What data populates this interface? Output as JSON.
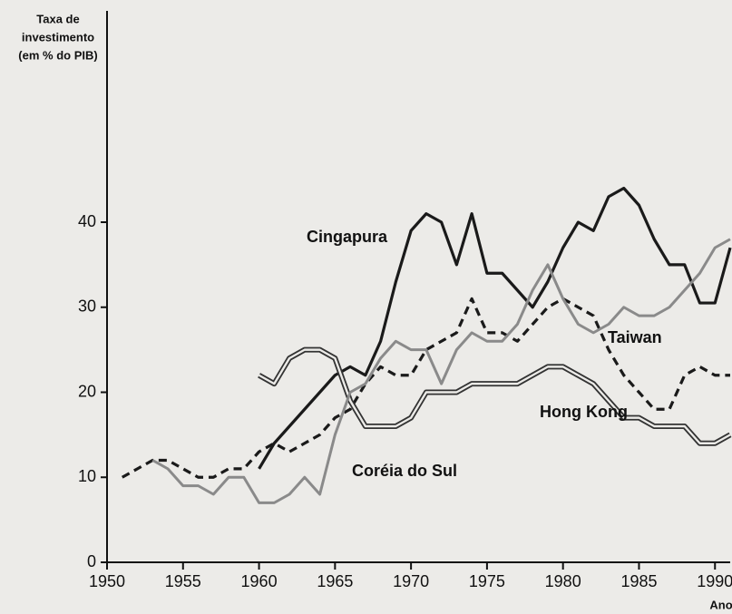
{
  "chart_data": {
    "type": "line",
    "y_label": [
      "Taxa de",
      "investimento",
      "(em % do PIB)"
    ],
    "x_label": "Ano",
    "x": [
      1950,
      1951,
      1952,
      1953,
      1954,
      1955,
      1956,
      1957,
      1958,
      1959,
      1960,
      1961,
      1962,
      1963,
      1964,
      1965,
      1966,
      1967,
      1968,
      1969,
      1970,
      1971,
      1972,
      1973,
      1974,
      1975,
      1976,
      1977,
      1978,
      1979,
      1980,
      1981,
      1982,
      1983,
      1984,
      1985,
      1986,
      1987,
      1988,
      1989,
      1990,
      1991
    ],
    "xlim": [
      1950,
      1991
    ],
    "xticks": [
      1950,
      1955,
      1960,
      1965,
      1970,
      1975,
      1980,
      1985,
      1990
    ],
    "ylim": [
      0,
      50
    ],
    "yticks": [
      0,
      10,
      20,
      30,
      40
    ],
    "series": [
      {
        "name": "Cingapura",
        "color": "#1a1a1a",
        "style": "solid",
        "values": [
          null,
          null,
          null,
          null,
          null,
          null,
          null,
          null,
          null,
          null,
          11,
          14,
          16,
          18,
          20,
          22,
          23,
          22,
          26,
          33,
          39,
          41,
          40,
          35,
          41,
          34,
          34,
          32,
          30,
          33,
          37,
          40,
          39,
          43,
          44,
          42,
          38,
          35,
          35,
          30.5,
          30.5,
          37
        ]
      },
      {
        "name": "Taiwan",
        "color": "#1a1a1a",
        "style": "dashed",
        "values": [
          null,
          10,
          11,
          12,
          12,
          11,
          10,
          10,
          11,
          11,
          13,
          14,
          13,
          14,
          15,
          17,
          18,
          21,
          23,
          22,
          22,
          25,
          26,
          27,
          31,
          27,
          27,
          26,
          28,
          30,
          31,
          30,
          29,
          25,
          22,
          20,
          18,
          18,
          22,
          23,
          22,
          22
        ]
      },
      {
        "name": "Hong Kong",
        "color": "#333333",
        "style": "double",
        "values": [
          null,
          null,
          null,
          null,
          null,
          null,
          null,
          null,
          null,
          null,
          22,
          21,
          24,
          25,
          25,
          24,
          19,
          16,
          16,
          16,
          17,
          20,
          20,
          20,
          21,
          21,
          21,
          21,
          22,
          23,
          23,
          22,
          21,
          19,
          17,
          17,
          16,
          16,
          16,
          14,
          14,
          15
        ]
      },
      {
        "name": "Coréia do Sul",
        "color": "#8a8a8a",
        "style": "solid",
        "values": [
          null,
          null,
          null,
          12,
          11,
          9,
          9,
          8,
          10,
          10,
          7,
          7,
          8,
          10,
          8,
          15,
          20,
          21,
          24,
          26,
          25,
          25,
          21,
          25,
          27,
          26,
          26,
          28,
          32,
          35,
          31,
          28,
          27,
          28,
          30,
          29,
          29,
          30,
          32,
          34,
          37,
          38
        ]
      }
    ]
  }
}
